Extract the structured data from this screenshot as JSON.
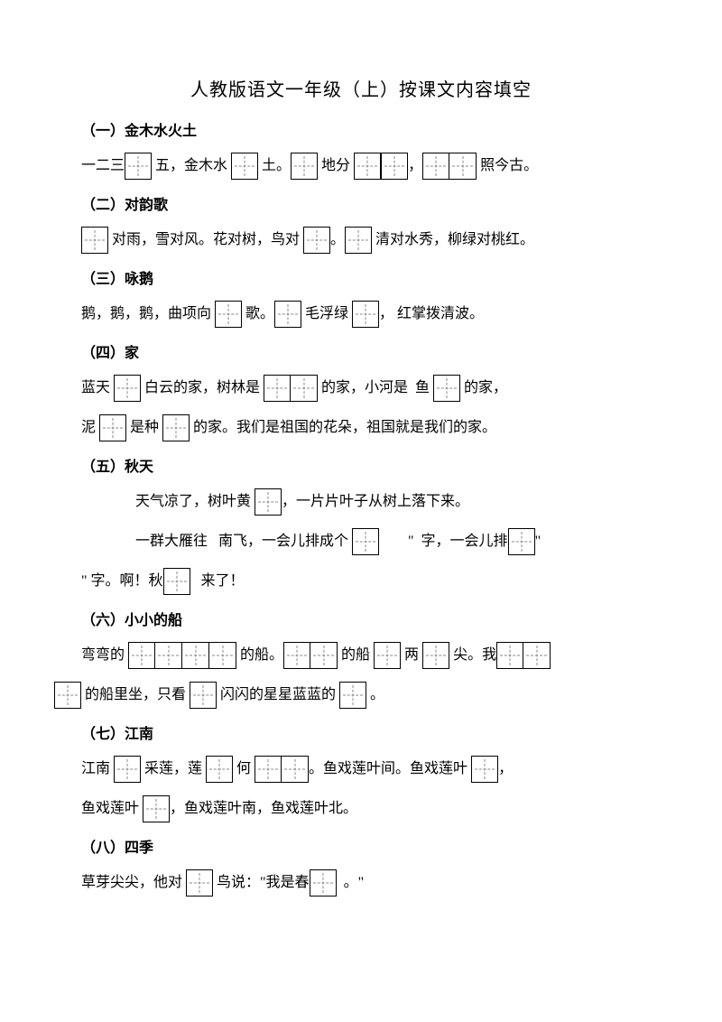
{
  "title": "人教版语文一年级（上）按课文内容填空",
  "s1": {
    "head": "（一）金木水火土",
    "t1": "一二三",
    "t2": " 五，金木水 ",
    "t3": " 土。",
    "t4": " 地分 ",
    "t5": " ",
    "t6": "，",
    "t7": " 照今古。"
  },
  "s2": {
    "head": "（二）对韵歌",
    "t1": " 对雨，雪对风。花对树，鸟对 ",
    "t2": "。",
    "t3": " 清对水秀，柳绿对桃红。"
  },
  "s3": {
    "head": "（三）咏鹅",
    "t1": "鹅，鹅，鹅，曲项向 ",
    "t2": " 歌。",
    "t3": " 毛浮绿 ",
    "t4": "， 红掌拨清波。"
  },
  "s4": {
    "head": "（四）家",
    "l1t1": "蓝天 ",
    "l1t2": " 白云的家，树林是 ",
    "l1t3": " 的家，小河是  鱼 ",
    "l1t4": " 的家，",
    "l2t1": "泥 ",
    "l2t2": " 是种 ",
    "l2t3": " 的家。我们是祖国的花朵，祖国就是我们的家。"
  },
  "s5": {
    "head": "（五）秋天",
    "l1t1": "天气凉了，树叶黄 ",
    "l1t2": "，一片片叶子从树上落下来。",
    "l2t1": "一群大雁往   南飞，一会儿排成个 ",
    "l2t2": "        \"  字，一会儿排",
    "l2t3": "\"",
    "l3t1": "\" 字。啊！秋",
    "l3t2": "   来了！"
  },
  "s6": {
    "head": "（六）小小的船",
    "l1t1": "弯弯的 ",
    "l1t2": " 的船。",
    "l1t3": " 的船 ",
    "l1t4": " 两 ",
    "l1t5": " 尖。我",
    "l2t1": " 的船里坐，只看 ",
    "l2t2": " 闪闪的星星蓝蓝的 ",
    "l2t3": " 。"
  },
  "s7": {
    "head": "（七）江南",
    "l1t1": "江南 ",
    "l1t2": " 采莲，莲 ",
    "l1t3": " 何 ",
    "l1t4": "。鱼戏莲叶间。鱼戏莲叶 ",
    "l1t5": "，",
    "l2t1": "鱼戏莲叶 ",
    "l2t2": "，鱼戏莲叶南，鱼戏莲叶北。"
  },
  "s8": {
    "head": "（八）四季",
    "l1t1": "草芽尖尖，他对 ",
    "l1t2": " 鸟说：\"我是春",
    "l1t3": "  。\""
  }
}
